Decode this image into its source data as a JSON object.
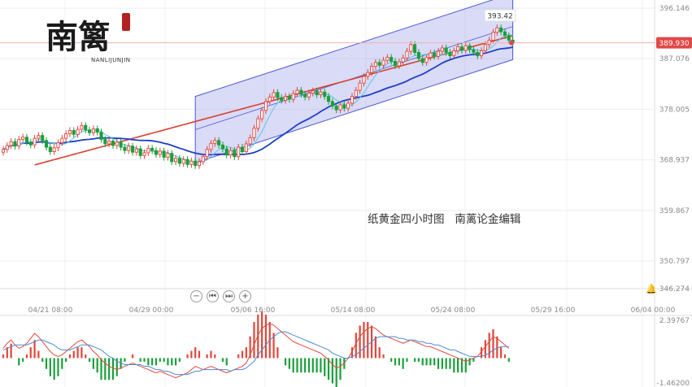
{
  "caption": "纸黄金四小时图   南蓠论金编辑",
  "logo": {
    "chars": "南篱",
    "subtitle": "NANLIJUNJIN"
  },
  "controls": [
    "−",
    "⏮",
    "⏭",
    "+"
  ],
  "colors": {
    "up": "#e2463a",
    "down": "#1a9f3a",
    "ma_fast": "#5ac8e6",
    "ma_mid": "#1c3fc7",
    "ma_slow": "#d9412e",
    "channel": "#4d58d6",
    "dif": "#e24a3a",
    "dea": "#4a8ad8"
  },
  "price_axis": {
    "ticks": [
      "396.146",
      "387.076",
      "378.005",
      "368.937",
      "359.867",
      "350.797"
    ],
    "min": 346.274,
    "max": 397.6
  },
  "current_price": "389.930",
  "low_price_label": "346.274",
  "high_marker": "393.42",
  "macd_axis": {
    "top": "2.39767",
    "bottom": "-1.46200"
  },
  "time_labels": [
    "04/21 08:00",
    "04/29 00:00",
    "05/06 16:00",
    "05/14 08:00",
    "05/24 08:00",
    "05/29 16:00",
    "06/04 00:00"
  ],
  "chart_data": {
    "type": "candlestick",
    "closes": [
      370.8,
      371.5,
      372.2,
      371.4,
      372.6,
      373.0,
      372.1,
      371.6,
      372.8,
      373.3,
      372.4,
      371.2,
      370.4,
      371.1,
      372.0,
      372.8,
      373.6,
      374.2,
      373.5,
      374.4,
      375.1,
      374.3,
      373.8,
      374.5,
      373.9,
      372.6,
      371.8,
      372.3,
      371.5,
      372.1,
      371.2,
      370.6,
      371.4,
      370.3,
      370.9,
      369.7,
      370.2,
      371.0,
      370.6,
      369.9,
      370.5,
      369.4,
      370.1,
      368.6,
      369.2,
      368.3,
      369.0,
      368.1,
      368.7,
      367.9,
      368.6,
      369.5,
      370.8,
      371.9,
      372.4,
      371.6,
      370.9,
      369.8,
      370.6,
      369.5,
      371.2,
      370.4,
      371.8,
      372.9,
      374.6,
      376.3,
      377.8,
      379.4,
      380.2,
      381.0,
      380.1,
      379.6,
      380.3,
      379.8,
      380.8,
      381.4,
      380.7,
      380.2,
      380.9,
      381.3,
      380.6,
      381.1,
      380.3,
      379.4,
      378.6,
      377.9,
      378.8,
      378.2,
      379.1,
      380.3,
      381.4,
      382.7,
      383.9,
      384.6,
      385.7,
      386.4,
      385.9,
      386.8,
      387.3,
      386.6,
      385.8,
      386.5,
      387.2,
      388.4,
      389.6,
      388.2,
      387.1,
      386.4,
      387.3,
      388.1,
      387.5,
      388.4,
      389.0,
      388.2,
      387.6,
      388.5,
      389.2,
      388.6,
      389.4,
      388.7,
      388.2,
      387.6,
      388.5,
      389.6,
      390.4,
      391.8,
      392.6,
      391.9,
      391.2,
      390.4,
      389.9
    ],
    "channel": {
      "lower_start": 368.4,
      "lower_end": 386.9,
      "upper_start": 380.3,
      "upper_end": 398.8,
      "start_index": 49,
      "end_index": 130
    },
    "dif": [
      0.6,
      0.9,
      1.1,
      0.8,
      0.6,
      0.7,
      0.9,
      1.2,
      1.5,
      1.3,
      1.0,
      0.7,
      0.4,
      0.2,
      0.1,
      0.2,
      0.4,
      0.6,
      0.8,
      1.0,
      1.1,
      0.9,
      0.7,
      0.4,
      0.2,
      -0.1,
      -0.3,
      -0.5,
      -0.6,
      -0.7,
      -0.6,
      -0.5,
      -0.4,
      -0.3,
      -0.4,
      -0.5,
      -0.6,
      -0.7,
      -0.8,
      -0.9,
      -0.8,
      -0.9,
      -1.0,
      -1.1,
      -1.2,
      -1.1,
      -1.0,
      -0.9,
      -0.7,
      -0.5,
      -0.6,
      -0.7,
      -0.6,
      -0.5,
      -0.6,
      -0.7,
      -0.8,
      -0.9,
      -0.8,
      -0.7,
      -0.6,
      -0.5,
      -0.3,
      0.2,
      0.8,
      1.4,
      1.8,
      2.0,
      2.1,
      2.0,
      1.8,
      1.6,
      1.4,
      1.2,
      1.0,
      0.9,
      0.8,
      0.7,
      0.6,
      0.5,
      0.4,
      0.3,
      0.1,
      -0.1,
      -0.4,
      -0.6,
      -0.5,
      -0.3,
      0.0,
      0.4,
      0.9,
      1.3,
      1.6,
      1.8,
      1.9,
      1.8,
      1.6,
      1.4,
      1.3,
      1.2,
      1.1,
      1.0,
      0.9,
      1.0,
      1.1,
      1.0,
      0.9,
      0.8,
      0.7,
      0.7,
      0.6,
      0.5,
      0.4,
      0.3,
      0.2,
      0.1,
      0.0,
      -0.1,
      -0.2,
      -0.1,
      0.0,
      0.1,
      0.4,
      0.7,
      1.0,
      1.3,
      1.2,
      1.0,
      0.8,
      0.6
    ],
    "dea": [
      0.5,
      0.6,
      0.7,
      0.8,
      0.8,
      0.8,
      0.8,
      0.9,
      1.0,
      1.1,
      1.1,
      1.0,
      0.9,
      0.8,
      0.6,
      0.5,
      0.5,
      0.5,
      0.6,
      0.7,
      0.8,
      0.8,
      0.8,
      0.7,
      0.6,
      0.5,
      0.3,
      0.1,
      0.0,
      -0.2,
      -0.3,
      -0.4,
      -0.4,
      -0.4,
      -0.4,
      -0.4,
      -0.5,
      -0.5,
      -0.6,
      -0.7,
      -0.7,
      -0.8,
      -0.8,
      -0.9,
      -1.0,
      -1.0,
      -1.0,
      -1.0,
      -0.9,
      -0.8,
      -0.8,
      -0.7,
      -0.7,
      -0.7,
      -0.7,
      -0.7,
      -0.7,
      -0.7,
      -0.8,
      -0.7,
      -0.7,
      -0.7,
      -0.6,
      -0.4,
      -0.2,
      0.2,
      0.5,
      0.8,
      1.1,
      1.3,
      1.5,
      1.6,
      1.6,
      1.5,
      1.4,
      1.3,
      1.2,
      1.1,
      1.0,
      0.9,
      0.8,
      0.7,
      0.6,
      0.5,
      0.3,
      0.2,
      0.1,
      0.0,
      0.0,
      0.1,
      0.2,
      0.4,
      0.6,
      0.8,
      1.0,
      1.2,
      1.3,
      1.3,
      1.3,
      1.3,
      1.3,
      1.2,
      1.2,
      1.1,
      1.1,
      1.1,
      1.0,
      1.0,
      0.9,
      0.9,
      0.8,
      0.8,
      0.7,
      0.6,
      0.5,
      0.5,
      0.4,
      0.3,
      0.2,
      0.1,
      0.1,
      0.1,
      0.1,
      0.2,
      0.3,
      0.5,
      0.6,
      0.7,
      0.7,
      0.7
    ]
  }
}
